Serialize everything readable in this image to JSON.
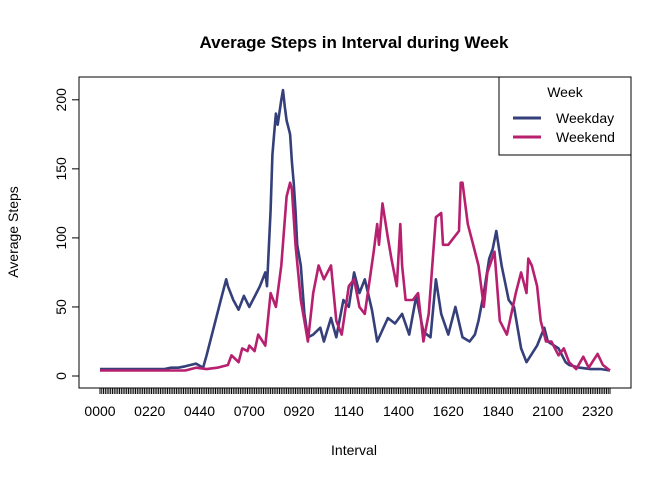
{
  "chart_data": {
    "type": "line",
    "title": "Average Steps in Interval during Week",
    "xlabel": "Interval",
    "ylabel": "Average Steps",
    "ylim": [
      0,
      210
    ],
    "y_ticks": [
      0,
      50,
      100,
      150,
      200
    ],
    "x_tick_labels": [
      "0000",
      "0220",
      "0440",
      "0700",
      "0920",
      "1140",
      "1400",
      "1620",
      "1840",
      "2100",
      "2320"
    ],
    "interval_minutes": 5,
    "intervals_per_day": 288,
    "legend": {
      "title": "Week",
      "position": "top-right"
    },
    "grid": false,
    "series": [
      {
        "name": "Weekday",
        "color": "#353f7a",
        "points": [
          [
            0,
            5
          ],
          [
            60,
            5
          ],
          [
            120,
            5
          ],
          [
            180,
            5
          ],
          [
            240,
            5
          ],
          [
            300,
            5
          ],
          [
            320,
            6
          ],
          [
            340,
            6
          ],
          [
            400,
            7
          ],
          [
            430,
            9
          ],
          [
            450,
            6
          ],
          [
            500,
            15
          ],
          [
            520,
            35
          ],
          [
            540,
            55
          ],
          [
            555,
            70
          ],
          [
            600,
            65
          ],
          [
            615,
            55
          ],
          [
            630,
            48
          ],
          [
            645,
            58
          ],
          [
            700,
            50
          ],
          [
            720,
            60
          ],
          [
            730,
            65
          ],
          [
            745,
            75
          ],
          [
            750,
            65
          ],
          [
            800,
            120
          ],
          [
            805,
            160
          ],
          [
            810,
            175
          ],
          [
            815,
            190
          ],
          [
            820,
            182
          ],
          [
            830,
            200
          ],
          [
            835,
            207
          ],
          [
            840,
            195
          ],
          [
            845,
            185
          ],
          [
            850,
            180
          ],
          [
            855,
            175
          ],
          [
            900,
            155
          ],
          [
            905,
            140
          ],
          [
            910,
            120
          ],
          [
            915,
            95
          ],
          [
            925,
            80
          ],
          [
            935,
            45
          ],
          [
            945,
            28
          ],
          [
            1000,
            30
          ],
          [
            1020,
            35
          ],
          [
            1030,
            25
          ],
          [
            1050,
            42
          ],
          [
            1105,
            28
          ],
          [
            1125,
            55
          ],
          [
            1140,
            50
          ],
          [
            1155,
            75
          ],
          [
            1210,
            60
          ],
          [
            1225,
            70
          ],
          [
            1245,
            48
          ],
          [
            1300,
            25
          ],
          [
            1330,
            42
          ],
          [
            1350,
            38
          ],
          [
            1410,
            45
          ],
          [
            1430,
            30
          ],
          [
            1450,
            58
          ],
          [
            1510,
            32
          ],
          [
            1530,
            28
          ],
          [
            1545,
            70
          ],
          [
            1600,
            45
          ],
          [
            1620,
            30
          ],
          [
            1640,
            50
          ],
          [
            1700,
            28
          ],
          [
            1720,
            25
          ],
          [
            1735,
            30
          ],
          [
            1745,
            40
          ],
          [
            1800,
            60
          ],
          [
            1815,
            85
          ],
          [
            1825,
            92
          ],
          [
            1835,
            105
          ],
          [
            1850,
            80
          ],
          [
            1910,
            55
          ],
          [
            1925,
            50
          ],
          [
            1945,
            20
          ],
          [
            2000,
            10
          ],
          [
            2030,
            22
          ],
          [
            2050,
            35
          ],
          [
            2100,
            25
          ],
          [
            2130,
            20
          ],
          [
            2150,
            10
          ],
          [
            2200,
            8
          ],
          [
            2230,
            6
          ],
          [
            2300,
            5
          ],
          [
            2330,
            5
          ],
          [
            2355,
            4
          ]
        ]
      },
      {
        "name": "Weekend",
        "color": "#b7206f",
        "points": [
          [
            0,
            4
          ],
          [
            100,
            4
          ],
          [
            200,
            4
          ],
          [
            300,
            4
          ],
          [
            400,
            4
          ],
          [
            430,
            6
          ],
          [
            500,
            5
          ],
          [
            530,
            6
          ],
          [
            600,
            8
          ],
          [
            610,
            15
          ],
          [
            630,
            10
          ],
          [
            640,
            20
          ],
          [
            655,
            18
          ],
          [
            700,
            22
          ],
          [
            715,
            18
          ],
          [
            725,
            30
          ],
          [
            745,
            22
          ],
          [
            800,
            60
          ],
          [
            815,
            50
          ],
          [
            830,
            80
          ],
          [
            845,
            130
          ],
          [
            855,
            140
          ],
          [
            900,
            135
          ],
          [
            910,
            95
          ],
          [
            925,
            55
          ],
          [
            935,
            40
          ],
          [
            945,
            25
          ],
          [
            1000,
            60
          ],
          [
            1015,
            80
          ],
          [
            1030,
            70
          ],
          [
            1050,
            80
          ],
          [
            1105,
            40
          ],
          [
            1120,
            30
          ],
          [
            1140,
            65
          ],
          [
            1155,
            70
          ],
          [
            1210,
            50
          ],
          [
            1225,
            45
          ],
          [
            1250,
            90
          ],
          [
            1300,
            110
          ],
          [
            1305,
            95
          ],
          [
            1315,
            125
          ],
          [
            1330,
            100
          ],
          [
            1340,
            85
          ],
          [
            1355,
            65
          ],
          [
            1405,
            110
          ],
          [
            1410,
            80
          ],
          [
            1420,
            55
          ],
          [
            1440,
            55
          ],
          [
            1455,
            60
          ],
          [
            1510,
            25
          ],
          [
            1525,
            45
          ],
          [
            1545,
            115
          ],
          [
            1600,
            118
          ],
          [
            1605,
            95
          ],
          [
            1620,
            95
          ],
          [
            1635,
            100
          ],
          [
            1650,
            105
          ],
          [
            1655,
            140
          ],
          [
            1700,
            140
          ],
          [
            1715,
            110
          ],
          [
            1730,
            95
          ],
          [
            1745,
            80
          ],
          [
            1800,
            50
          ],
          [
            1810,
            75
          ],
          [
            1830,
            90
          ],
          [
            1845,
            40
          ],
          [
            1905,
            30
          ],
          [
            1930,
            60
          ],
          [
            1945,
            75
          ],
          [
            2000,
            60
          ],
          [
            2005,
            85
          ],
          [
            2015,
            80
          ],
          [
            2030,
            65
          ],
          [
            2040,
            40
          ],
          [
            2055,
            25
          ],
          [
            2110,
            25
          ],
          [
            2130,
            15
          ],
          [
            2145,
            20
          ],
          [
            2200,
            10
          ],
          [
            2220,
            5
          ],
          [
            2240,
            14
          ],
          [
            2255,
            6
          ],
          [
            2310,
            12
          ],
          [
            2320,
            16
          ],
          [
            2335,
            8
          ],
          [
            2355,
            4
          ]
        ]
      }
    ]
  }
}
